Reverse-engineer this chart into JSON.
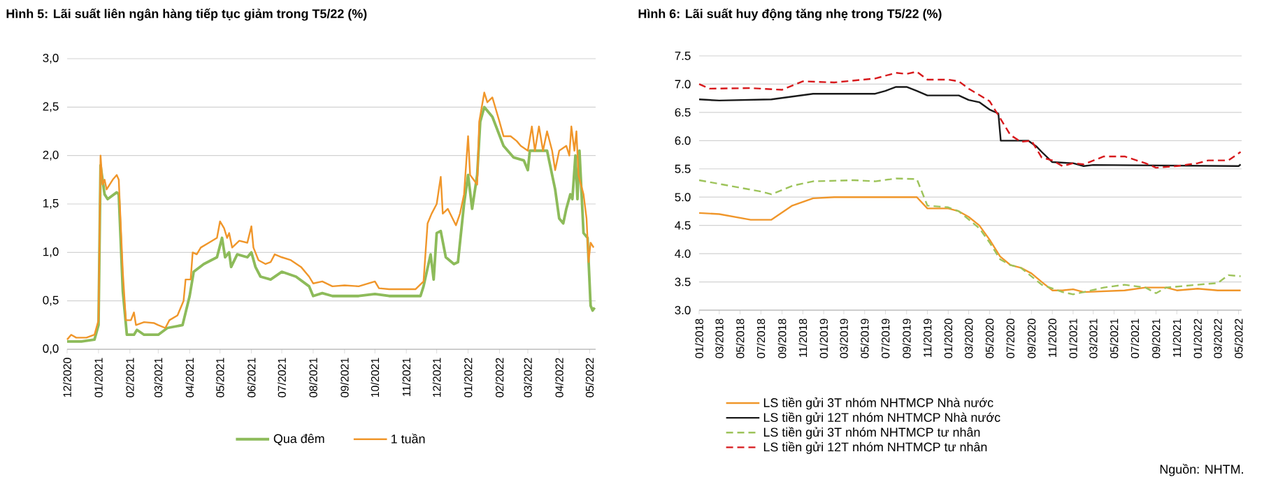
{
  "chart_data": [
    {
      "type": "line",
      "title": "Hình 5: Lãi suất liên ngân hàng tiếp tục giảm trong T5/22 (%)",
      "grid": "y",
      "legend": "bottom",
      "marker": "none",
      "xlim": [
        "2020-12-01",
        "2022-05-07"
      ],
      "xticks": [
        {
          "value": "2020-12",
          "label": "12/2020"
        },
        {
          "value": "2021-01",
          "label": "01/2021"
        },
        {
          "value": "2021-02",
          "label": "02/2021"
        },
        {
          "value": "2021-03",
          "label": "03/2021"
        },
        {
          "value": "2021-04",
          "label": "04/2021"
        },
        {
          "value": "2021-05",
          "label": "05/2021"
        },
        {
          "value": "2021-06",
          "label": "06/2021"
        },
        {
          "value": "2021-07",
          "label": "07/2021"
        },
        {
          "value": "2021-08",
          "label": "08/2021"
        },
        {
          "value": "2021-09",
          "label": "09/2021"
        },
        {
          "value": "2021-10",
          "label": "10/2021"
        },
        {
          "value": "2021-11",
          "label": "11/2021"
        },
        {
          "value": "2021-12",
          "label": "12/2021"
        },
        {
          "value": "2022-01",
          "label": "01/2022"
        },
        {
          "value": "2022-02",
          "label": "02/2022"
        },
        {
          "value": "2022-03",
          "label": "03/2022"
        },
        {
          "value": "2022-04",
          "label": "04/2022"
        },
        {
          "value": "2022-05",
          "label": "05/2022"
        }
      ],
      "ylim": [
        0,
        3
      ],
      "yticks": [
        {
          "value": 0,
          "label": "0,0"
        },
        {
          "value": 0.5,
          "label": "0,5"
        },
        {
          "value": 1,
          "label": "1,0"
        },
        {
          "value": 1.5,
          "label": "1,5"
        },
        {
          "value": 2,
          "label": "2,0"
        },
        {
          "value": 2.5,
          "label": "2,5"
        },
        {
          "value": 3,
          "label": "3,0"
        }
      ],
      "series": [
        {
          "name": "Qua đêm",
          "color": "#8dbb5a",
          "line_style": "solid",
          "x": [
            "2020-12-01",
            "2020-12-15",
            "2020-12-28",
            "2021-01-01",
            "2021-01-03",
            "2021-01-07",
            "2021-01-10",
            "2021-01-19",
            "2021-01-21",
            "2021-01-25",
            "2021-01-29",
            "2021-02-05",
            "2021-02-08",
            "2021-02-15",
            "2021-03-01",
            "2021-03-10",
            "2021-03-25",
            "2021-04-01",
            "2021-04-05",
            "2021-04-15",
            "2021-04-28",
            "2021-05-03",
            "2021-05-06",
            "2021-05-10",
            "2021-05-12",
            "2021-05-18",
            "2021-05-28",
            "2021-06-01",
            "2021-06-05",
            "2021-06-10",
            "2021-06-20",
            "2021-07-01",
            "2021-07-15",
            "2021-07-28",
            "2021-08-01",
            "2021-08-10",
            "2021-08-20",
            "2021-09-15",
            "2021-10-01",
            "2021-10-15",
            "2021-11-15",
            "2021-11-18",
            "2021-11-25",
            "2021-11-28",
            "2021-12-01",
            "2021-12-05",
            "2021-12-10",
            "2021-12-18",
            "2021-12-22",
            "2021-12-28",
            "2022-01-01",
            "2022-01-05",
            "2022-01-10",
            "2022-01-13",
            "2022-01-17",
            "2022-01-25",
            "2022-02-05",
            "2022-02-15",
            "2022-02-25",
            "2022-03-01",
            "2022-03-03",
            "2022-03-20",
            "2022-03-28",
            "2022-04-01",
            "2022-04-05",
            "2022-04-08",
            "2022-04-12",
            "2022-04-14",
            "2022-04-17",
            "2022-04-19",
            "2022-04-21",
            "2022-04-25",
            "2022-04-29",
            "2022-05-02",
            "2022-05-04",
            "2022-05-06"
          ],
          "values": [
            0.08,
            0.08,
            0.1,
            0.25,
            1.9,
            1.6,
            1.55,
            1.62,
            1.6,
            0.6,
            0.15,
            0.15,
            0.2,
            0.15,
            0.15,
            0.22,
            0.25,
            0.55,
            0.8,
            0.88,
            0.95,
            1.15,
            0.95,
            1.0,
            0.85,
            0.98,
            0.95,
            1.0,
            0.85,
            0.75,
            0.72,
            0.8,
            0.75,
            0.65,
            0.55,
            0.58,
            0.55,
            0.55,
            0.57,
            0.55,
            0.55,
            0.65,
            0.98,
            0.72,
            1.2,
            1.22,
            0.95,
            0.88,
            0.9,
            1.5,
            1.8,
            1.45,
            1.8,
            2.35,
            2.5,
            2.4,
            2.1,
            1.98,
            1.95,
            1.85,
            2.05,
            2.05,
            1.65,
            1.35,
            1.3,
            1.45,
            1.6,
            1.55,
            2.0,
            1.55,
            2.05,
            1.2,
            1.15,
            0.45,
            0.4,
            0.43
          ]
        },
        {
          "name": "1 tuần",
          "color": "#f0962a",
          "line_style": "solid",
          "x": [
            "2020-12-01",
            "2020-12-05",
            "2020-12-10",
            "2020-12-20",
            "2020-12-28",
            "2021-01-01",
            "2021-01-03",
            "2021-01-05",
            "2021-01-07",
            "2021-01-09",
            "2021-01-15",
            "2021-01-19",
            "2021-01-21",
            "2021-01-25",
            "2021-01-28",
            "2021-02-02",
            "2021-02-05",
            "2021-02-07",
            "2021-02-15",
            "2021-02-25",
            "2021-03-01",
            "2021-03-08",
            "2021-03-12",
            "2021-03-20",
            "2021-03-26",
            "2021-03-28",
            "2021-04-02",
            "2021-04-04",
            "2021-04-08",
            "2021-04-12",
            "2021-04-20",
            "2021-04-28",
            "2021-05-01",
            "2021-05-05",
            "2021-05-08",
            "2021-05-10",
            "2021-05-13",
            "2021-05-20",
            "2021-05-28",
            "2021-06-01",
            "2021-06-03",
            "2021-06-08",
            "2021-06-15",
            "2021-06-20",
            "2021-06-24",
            "2021-07-01",
            "2021-07-10",
            "2021-07-20",
            "2021-07-28",
            "2021-08-01",
            "2021-08-10",
            "2021-08-20",
            "2021-09-01",
            "2021-09-15",
            "2021-10-01",
            "2021-10-05",
            "2021-10-15",
            "2021-11-01",
            "2021-11-10",
            "2021-11-18",
            "2021-11-22",
            "2021-11-26",
            "2021-12-01",
            "2021-12-05",
            "2021-12-07",
            "2021-12-12",
            "2021-12-20",
            "2021-12-24",
            "2021-12-28",
            "2022-01-01",
            "2022-01-03",
            "2022-01-10",
            "2022-01-12",
            "2022-01-17",
            "2022-01-20",
            "2022-01-25",
            "2022-02-01",
            "2022-02-05",
            "2022-02-12",
            "2022-02-18",
            "2022-02-22",
            "2022-03-01",
            "2022-03-05",
            "2022-03-08",
            "2022-03-12",
            "2022-03-16",
            "2022-03-20",
            "2022-03-25",
            "2022-03-28",
            "2022-04-01",
            "2022-04-08",
            "2022-04-11",
            "2022-04-13",
            "2022-04-16",
            "2022-04-18",
            "2022-04-20",
            "2022-04-25",
            "2022-04-28",
            "2022-04-30",
            "2022-05-02",
            "2022-05-05"
          ],
          "values": [
            0.1,
            0.15,
            0.12,
            0.12,
            0.15,
            0.3,
            2.0,
            1.7,
            1.75,
            1.65,
            1.75,
            1.8,
            1.75,
            0.8,
            0.3,
            0.3,
            0.38,
            0.25,
            0.28,
            0.27,
            0.25,
            0.22,
            0.3,
            0.35,
            0.5,
            0.72,
            0.72,
            1.0,
            0.98,
            1.05,
            1.1,
            1.15,
            1.32,
            1.25,
            1.15,
            1.2,
            1.05,
            1.12,
            1.1,
            1.27,
            1.05,
            0.92,
            0.88,
            0.9,
            0.98,
            0.95,
            0.92,
            0.85,
            0.75,
            0.68,
            0.7,
            0.65,
            0.66,
            0.65,
            0.7,
            0.63,
            0.62,
            0.62,
            0.62,
            0.7,
            1.3,
            1.4,
            1.5,
            1.78,
            1.4,
            1.45,
            1.28,
            1.4,
            1.6,
            2.2,
            1.8,
            1.7,
            2.35,
            2.65,
            2.55,
            2.6,
            2.35,
            2.2,
            2.2,
            2.15,
            2.1,
            2.05,
            2.3,
            2.05,
            2.3,
            2.05,
            2.25,
            2.05,
            1.85,
            2.05,
            2.1,
            2.0,
            2.3,
            2.05,
            2.25,
            1.8,
            1.6,
            1.35,
            0.9,
            1.1,
            1.05
          ]
        }
      ]
    },
    {
      "type": "line",
      "title": "Hình 6: Lãi suất huy động tăng nhẹ trong T5/22 (%)",
      "grid": "y",
      "legend": "bottom",
      "marker": "none",
      "annotations": [
        "Nguồn: NHTM."
      ],
      "xlim": [
        "2018-01-01",
        "2022-05-10"
      ],
      "xticks": [
        {
          "value": "2018-01",
          "label": "01/2018"
        },
        {
          "value": "2018-03",
          "label": "03/2018"
        },
        {
          "value": "2018-05",
          "label": "05/2018"
        },
        {
          "value": "2018-07",
          "label": "07/2018"
        },
        {
          "value": "2018-09",
          "label": "09/2018"
        },
        {
          "value": "2018-11",
          "label": "11/2018"
        },
        {
          "value": "2019-01",
          "label": "01/2019"
        },
        {
          "value": "2019-03",
          "label": "03/2019"
        },
        {
          "value": "2019-05",
          "label": "05/2019"
        },
        {
          "value": "2019-07",
          "label": "07/2019"
        },
        {
          "value": "2019-09",
          "label": "09/2019"
        },
        {
          "value": "2019-11",
          "label": "11/2019"
        },
        {
          "value": "2020-01",
          "label": "01/2020"
        },
        {
          "value": "2020-03",
          "label": "03/2020"
        },
        {
          "value": "2020-05",
          "label": "05/2020"
        },
        {
          "value": "2020-07",
          "label": "07/2020"
        },
        {
          "value": "2020-09",
          "label": "09/2020"
        },
        {
          "value": "2020-11",
          "label": "11/2020"
        },
        {
          "value": "2021-01",
          "label": "01/2021"
        },
        {
          "value": "2021-03",
          "label": "03/2021"
        },
        {
          "value": "2021-05",
          "label": "05/2021"
        },
        {
          "value": "2021-07",
          "label": "07/2021"
        },
        {
          "value": "2021-09",
          "label": "09/2021"
        },
        {
          "value": "2021-11",
          "label": "11/2021"
        },
        {
          "value": "2022-01",
          "label": "01/2022"
        },
        {
          "value": "2022-03",
          "label": "03/2022"
        },
        {
          "value": "2022-05",
          "label": "05/2022"
        }
      ],
      "ylim": [
        3,
        7.5
      ],
      "yticks": [
        {
          "value": 3,
          "label": "3.0"
        },
        3.5,
        {
          "value": 4,
          "label": "4.0"
        },
        4.5,
        {
          "value": 5,
          "label": "5.0"
        },
        5.5,
        {
          "value": 6,
          "label": "6.0"
        },
        6.5,
        {
          "value": 7,
          "label": "7.0"
        },
        7.5
      ],
      "series": [
        {
          "name": "LS tiền gửi 3T nhóm NHTMCP Nhà nước",
          "color": "#f0962a",
          "line_style": "solid",
          "x": [
            "2018-01",
            "2018-03",
            "2018-06",
            "2018-08",
            "2018-10",
            "2018-12",
            "2019-02",
            "2019-10",
            "2019-11",
            "2020-01",
            "2020-02",
            "2020-03",
            "2020-04",
            "2020-05",
            "2020-06",
            "2020-07",
            "2020-08",
            "2020-09",
            "2020-10",
            "2020-11",
            "2020-12",
            "2021-01",
            "2021-02",
            "2021-06",
            "2021-08",
            "2021-10",
            "2021-11",
            "2022-01",
            "2022-03",
            "2022-05-07"
          ],
          "values": [
            4.72,
            4.7,
            4.6,
            4.6,
            4.85,
            4.98,
            5.0,
            5.0,
            4.8,
            4.8,
            4.75,
            4.65,
            4.5,
            4.25,
            3.95,
            3.8,
            3.75,
            3.65,
            3.5,
            3.35,
            3.35,
            3.37,
            3.32,
            3.35,
            3.4,
            3.4,
            3.35,
            3.38,
            3.35,
            3.35
          ]
        },
        {
          "name": "LS tiền gửi 12T nhóm NHTMCP Nhà nước",
          "color": "#1a1a1a",
          "line_style": "solid",
          "x": [
            "2018-01",
            "2018-03",
            "2018-08",
            "2018-10",
            "2018-12",
            "2019-06",
            "2019-07",
            "2019-08",
            "2019-09",
            "2019-10",
            "2019-11",
            "2020-02",
            "2020-03",
            "2020-04",
            "2020-05",
            "2020-05-27",
            "2020-06-03",
            "2020-08-22",
            "2020-09-15",
            "2020-10",
            "2020-11",
            "2021-01",
            "2021-02",
            "2021-03",
            "2022-05",
            "2022-05-07"
          ],
          "values": [
            6.73,
            6.71,
            6.73,
            6.78,
            6.83,
            6.83,
            6.88,
            6.95,
            6.95,
            6.88,
            6.8,
            6.8,
            6.72,
            6.68,
            6.55,
            6.48,
            6.0,
            6.0,
            5.9,
            5.8,
            5.62,
            5.6,
            5.55,
            5.57,
            5.55,
            5.58
          ]
        },
        {
          "name": "LS tiền gửi 3T nhóm NHTMCP tư nhân",
          "color": "#9dc35a",
          "line_style": "dashed",
          "x": [
            "2018-01",
            "2018-04",
            "2018-07",
            "2018-08",
            "2018-10",
            "2018-12",
            "2019-04",
            "2019-06",
            "2019-08",
            "2019-10",
            "2019-11",
            "2020-01",
            "2020-02",
            "2020-04",
            "2020-05",
            "2020-06",
            "2020-07",
            "2020-08",
            "2020-10",
            "2020-12",
            "2021-01",
            "2021-02",
            "2021-04",
            "2021-06",
            "2021-08",
            "2021-09",
            "2021-10",
            "2022-01",
            "2022-03",
            "2022-04",
            "2022-05-07"
          ],
          "values": [
            5.3,
            5.2,
            5.1,
            5.05,
            5.2,
            5.28,
            5.3,
            5.28,
            5.33,
            5.32,
            4.85,
            4.82,
            4.75,
            4.45,
            4.2,
            3.9,
            3.8,
            3.75,
            3.45,
            3.32,
            3.28,
            3.32,
            3.4,
            3.45,
            3.4,
            3.3,
            3.4,
            3.45,
            3.48,
            3.62,
            3.6
          ]
        },
        {
          "name": "LS tiền gửi 12T nhóm NHTMCP tư nhân",
          "color": "#d7191c",
          "line_style": "dashed",
          "x": [
            "2018-01",
            "2018-02",
            "2018-06",
            "2018-09",
            "2018-11",
            "2019-02",
            "2019-06",
            "2019-08",
            "2019-09",
            "2019-10",
            "2019-11",
            "2020-01",
            "2020-02",
            "2020-03",
            "2020-05",
            "2020-06",
            "2020-07",
            "2020-08",
            "2020-09",
            "2020-10",
            "2020-11",
            "2020-12",
            "2021-01",
            "2021-02",
            "2021-04",
            "2021-06",
            "2021-08",
            "2021-09",
            "2021-11",
            "2022-01",
            "2022-02",
            "2022-04",
            "2022-05-07"
          ],
          "values": [
            7.0,
            6.92,
            6.93,
            6.9,
            7.05,
            7.03,
            7.1,
            7.2,
            7.18,
            7.22,
            7.08,
            7.08,
            7.05,
            6.92,
            6.7,
            6.4,
            6.1,
            5.98,
            6.0,
            5.7,
            5.65,
            5.55,
            5.6,
            5.58,
            5.72,
            5.72,
            5.6,
            5.52,
            5.55,
            5.6,
            5.65,
            5.65,
            5.8
          ]
        }
      ]
    }
  ]
}
